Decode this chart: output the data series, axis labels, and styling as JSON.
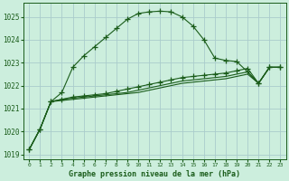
{
  "title": "Graphe pression niveau de la mer (hPa)",
  "bg_color": "#cceedd",
  "grid_color": "#aacccc",
  "line_color": "#1a5c1a",
  "xlim": [
    -0.5,
    23.5
  ],
  "ylim": [
    1018.8,
    1025.6
  ],
  "yticks": [
    1019,
    1020,
    1021,
    1022,
    1023,
    1024,
    1025
  ],
  "xticks": [
    0,
    1,
    2,
    3,
    4,
    5,
    6,
    7,
    8,
    9,
    10,
    11,
    12,
    13,
    14,
    15,
    16,
    17,
    18,
    19,
    20,
    21,
    22,
    23
  ],
  "series1_x": [
    0,
    1,
    2,
    3,
    4,
    5,
    6,
    7,
    8,
    9,
    10,
    11,
    12,
    13,
    14,
    15,
    16,
    17,
    18,
    19,
    20,
    21,
    22,
    23
  ],
  "series1_y": [
    1019.2,
    1020.1,
    1021.3,
    1021.7,
    1022.8,
    1023.3,
    1023.7,
    1024.1,
    1024.5,
    1024.9,
    1025.15,
    1025.22,
    1025.25,
    1025.22,
    1025.0,
    1024.6,
    1024.0,
    1023.2,
    1023.1,
    1023.05,
    1022.6,
    1022.1,
    1022.8,
    1022.8
  ],
  "series2_x": [
    0,
    1,
    2,
    3,
    4,
    5,
    6,
    7,
    8,
    9,
    10,
    11,
    12,
    13,
    14,
    15,
    16,
    17,
    18,
    19,
    20,
    21,
    22,
    23
  ],
  "series2_y": [
    1019.2,
    1020.1,
    1021.3,
    1021.4,
    1021.5,
    1021.55,
    1021.6,
    1021.65,
    1021.75,
    1021.85,
    1021.95,
    1022.05,
    1022.15,
    1022.25,
    1022.35,
    1022.4,
    1022.45,
    1022.5,
    1022.55,
    1022.65,
    1022.75,
    1022.1,
    1022.8,
    1022.8
  ],
  "series3_x": [
    0,
    1,
    2,
    3,
    4,
    5,
    6,
    7,
    8,
    9,
    10,
    11,
    12,
    13,
    14,
    15,
    16,
    17,
    18,
    19,
    20,
    21,
    22,
    23
  ],
  "series3_y": [
    1019.2,
    1020.1,
    1021.3,
    1021.4,
    1021.45,
    1021.5,
    1021.55,
    1021.6,
    1021.65,
    1021.7,
    1021.8,
    1021.9,
    1022.0,
    1022.1,
    1022.2,
    1022.25,
    1022.3,
    1022.35,
    1022.4,
    1022.5,
    1022.6,
    1022.1,
    1022.8,
    1022.8
  ],
  "series4_x": [
    0,
    1,
    2,
    3,
    4,
    5,
    6,
    7,
    8,
    9,
    10,
    11,
    12,
    13,
    14,
    15,
    16,
    17,
    18,
    19,
    20,
    21,
    22,
    23
  ],
  "series4_y": [
    1019.2,
    1020.1,
    1021.3,
    1021.35,
    1021.4,
    1021.45,
    1021.5,
    1021.55,
    1021.6,
    1021.65,
    1021.7,
    1021.8,
    1021.9,
    1022.0,
    1022.1,
    1022.15,
    1022.2,
    1022.25,
    1022.3,
    1022.4,
    1022.5,
    1022.1,
    1022.8,
    1022.8
  ]
}
